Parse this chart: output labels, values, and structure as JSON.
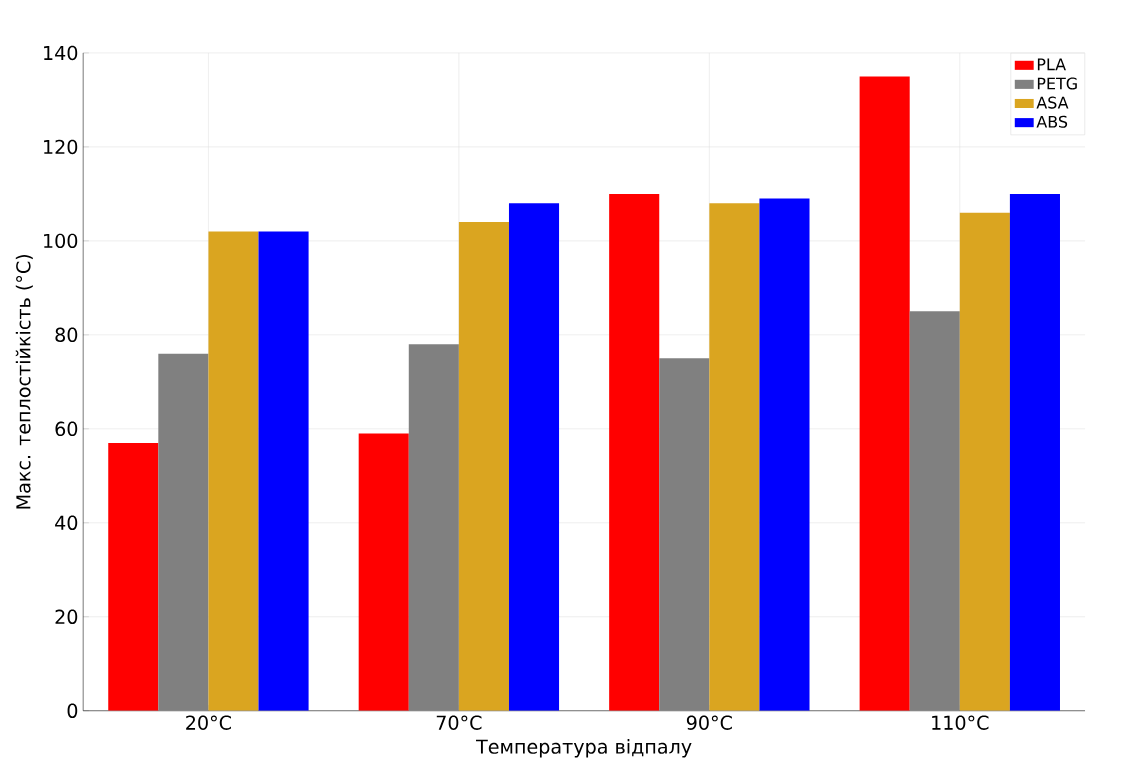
{
  "chart_data": {
    "type": "bar",
    "xlabel": "Температура відпалу",
    "ylabel": "Макс. теплостійкість (°C)",
    "categories": [
      "20°C",
      "70°C",
      "90°C",
      "110°C"
    ],
    "series": [
      {
        "name": "PLA",
        "color": "#ff0000",
        "values": [
          57,
          59,
          110,
          135
        ]
      },
      {
        "name": "PETG",
        "color": "#808080",
        "values": [
          76,
          78,
          75,
          85
        ]
      },
      {
        "name": "ASA",
        "color": "#daa520",
        "values": [
          102,
          104,
          108,
          106
        ]
      },
      {
        "name": "ABS",
        "color": "#0000ff",
        "values": [
          102,
          108,
          109,
          110
        ]
      }
    ],
    "ylim": [
      0,
      140
    ],
    "yticks": [
      0,
      20,
      40,
      60,
      80,
      100,
      120,
      140
    ],
    "grid": true,
    "legend": "top right"
  }
}
